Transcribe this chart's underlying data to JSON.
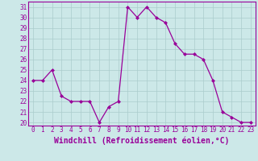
{
  "x": [
    0,
    1,
    2,
    3,
    4,
    5,
    6,
    7,
    8,
    9,
    10,
    11,
    12,
    13,
    14,
    15,
    16,
    17,
    18,
    19,
    20,
    21,
    22,
    23
  ],
  "y": [
    24,
    24,
    25,
    22.5,
    22,
    22,
    22,
    20,
    21.5,
    22,
    31,
    30,
    31,
    30,
    29.5,
    27.5,
    26.5,
    26.5,
    26,
    24,
    21,
    20.5,
    20,
    20
  ],
  "line_color": "#990099",
  "marker": "D",
  "marker_size": 2.0,
  "bg_color": "#cce8e8",
  "grid_color": "#aacccc",
  "xlabel": "Windchill (Refroidissement éolien,°C)",
  "xlabel_color": "#990099",
  "ylabel_ticks": [
    20,
    21,
    22,
    23,
    24,
    25,
    26,
    27,
    28,
    29,
    30,
    31
  ],
  "xticks": [
    0,
    1,
    2,
    3,
    4,
    5,
    6,
    7,
    8,
    9,
    10,
    11,
    12,
    13,
    14,
    15,
    16,
    17,
    18,
    19,
    20,
    21,
    22,
    23
  ],
  "ylim": [
    19.7,
    31.5
  ],
  "xlim": [
    -0.5,
    23.5
  ],
  "tick_label_color": "#990099",
  "tick_label_size": 5.5,
  "xlabel_size": 7.0,
  "axis_spine_color": "#990099",
  "line_width": 0.9
}
